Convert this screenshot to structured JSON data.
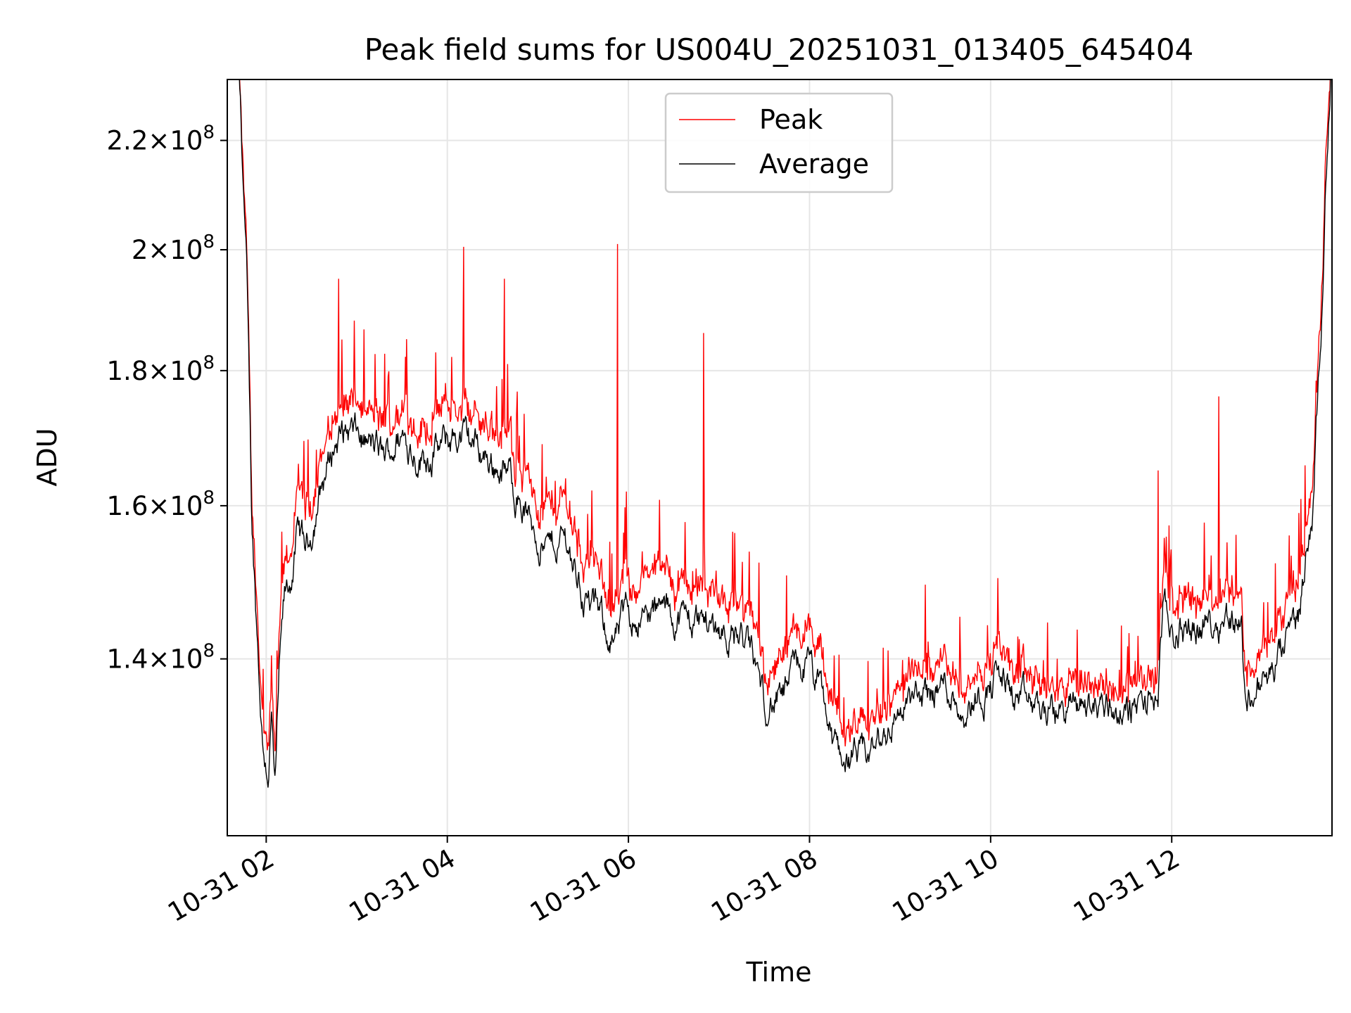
{
  "chart_data": {
    "type": "line",
    "title": "Peak field sums for US004U_20251031_013405_645404",
    "xlabel": "Time",
    "ylabel": "ADU",
    "y_scale": "log",
    "grid": true,
    "legend_position": "upper center",
    "xlim_hours": [
      1.57,
      13.77
    ],
    "ylim": [
      120000000,
      232000000
    ],
    "x_ticks": [
      {
        "hour": 2,
        "label": "10-31 02"
      },
      {
        "hour": 4,
        "label": "10-31 04"
      },
      {
        "hour": 6,
        "label": "10-31 06"
      },
      {
        "hour": 8,
        "label": "10-31 08"
      },
      {
        "hour": 10,
        "label": "10-31 10"
      },
      {
        "hour": 12,
        "label": "10-31 12"
      }
    ],
    "y_ticks": [
      {
        "value": 140000000,
        "mant": "1.4",
        "exp": "8"
      },
      {
        "value": 160000000,
        "mant": "1.6",
        "exp": "8"
      },
      {
        "value": 180000000,
        "mant": "1.8",
        "exp": "8"
      },
      {
        "value": 200000000,
        "mant": "2",
        "exp": "8"
      },
      {
        "value": 220000000,
        "mant": "2.2",
        "exp": "8"
      }
    ],
    "series": [
      {
        "name": "Peak",
        "color": "#ff0000",
        "style": "peak",
        "points_hour_value": [
          [
            1.62,
            235000000
          ],
          [
            1.7,
            232000000
          ],
          [
            1.78,
            200000000
          ],
          [
            1.84,
            160000000
          ],
          [
            1.9,
            145000000
          ],
          [
            1.96,
            132000000
          ],
          [
            2.02,
            130000000
          ],
          [
            2.06,
            136000000
          ],
          [
            2.1,
            126000000
          ],
          [
            2.14,
            140000000
          ],
          [
            2.2,
            150000000
          ],
          [
            2.26,
            152000000
          ],
          [
            2.35,
            160000000
          ],
          [
            2.45,
            158000000
          ],
          [
            2.6,
            165000000
          ],
          [
            2.75,
            172000000
          ],
          [
            2.9,
            174000000
          ],
          [
            3.1,
            172000000
          ],
          [
            3.3,
            170000000
          ],
          [
            3.5,
            173000000
          ],
          [
            3.7,
            170000000
          ],
          [
            3.9,
            172000000
          ],
          [
            4.1,
            173000000
          ],
          [
            4.3,
            172000000
          ],
          [
            4.5,
            170000000
          ],
          [
            4.7,
            168000000
          ],
          [
            4.9,
            162000000
          ],
          [
            5.1,
            158000000
          ],
          [
            5.3,
            160000000
          ],
          [
            5.5,
            152000000
          ],
          [
            5.7,
            149000000
          ],
          [
            5.85,
            145000000
          ],
          [
            6.0,
            149000000
          ],
          [
            6.2,
            149000000
          ],
          [
            6.4,
            150000000
          ],
          [
            6.6,
            148000000
          ],
          [
            6.8,
            148000000
          ],
          [
            7.0,
            147000000
          ],
          [
            7.2,
            146000000
          ],
          [
            7.35,
            144000000
          ],
          [
            7.5,
            138000000
          ],
          [
            7.7,
            138000000
          ],
          [
            7.85,
            142000000
          ],
          [
            8.0,
            142000000
          ],
          [
            8.15,
            138000000
          ],
          [
            8.25,
            133000000
          ],
          [
            8.4,
            131000000
          ],
          [
            8.6,
            130000000
          ],
          [
            8.8,
            133000000
          ],
          [
            9.0,
            136000000
          ],
          [
            9.2,
            137000000
          ],
          [
            9.5,
            139000000
          ],
          [
            9.7,
            136000000
          ],
          [
            9.9,
            138000000
          ],
          [
            10.1,
            140000000
          ],
          [
            10.3,
            137000000
          ],
          [
            10.5,
            136000000
          ],
          [
            10.7,
            135000000
          ],
          [
            10.9,
            136000000
          ],
          [
            11.1,
            136000000
          ],
          [
            11.3,
            136000000
          ],
          [
            11.5,
            135000000
          ],
          [
            11.7,
            136000000
          ],
          [
            11.85,
            137000000
          ],
          [
            11.9,
            149000000
          ],
          [
            12.0,
            146000000
          ],
          [
            12.2,
            147000000
          ],
          [
            12.4,
            147000000
          ],
          [
            12.6,
            148000000
          ],
          [
            12.77,
            148000000
          ],
          [
            12.8,
            138000000
          ],
          [
            12.95,
            139000000
          ],
          [
            13.1,
            141000000
          ],
          [
            13.25,
            144000000
          ],
          [
            13.4,
            148000000
          ],
          [
            13.55,
            162000000
          ],
          [
            13.65,
            190000000
          ],
          [
            13.72,
            225000000
          ],
          [
            13.77,
            240000000
          ]
        ]
      },
      {
        "name": "Average",
        "color": "#000000",
        "style": "avg",
        "points_hour_value": [
          [
            1.62,
            235000000
          ],
          [
            1.7,
            232000000
          ],
          [
            1.78,
            198000000
          ],
          [
            1.84,
            158000000
          ],
          [
            1.9,
            143000000
          ],
          [
            1.96,
            130000000
          ],
          [
            2.02,
            127000000
          ],
          [
            2.06,
            133000000
          ],
          [
            2.1,
            124000000
          ],
          [
            2.14,
            137000000
          ],
          [
            2.2,
            147000000
          ],
          [
            2.26,
            149000000
          ],
          [
            2.35,
            156000000
          ],
          [
            2.45,
            154000000
          ],
          [
            2.6,
            162000000
          ],
          [
            2.75,
            169000000
          ],
          [
            2.9,
            171000000
          ],
          [
            3.1,
            169000000
          ],
          [
            3.3,
            167000000
          ],
          [
            3.5,
            170000000
          ],
          [
            3.7,
            167000000
          ],
          [
            3.9,
            168000000
          ],
          [
            4.1,
            170000000
          ],
          [
            4.3,
            169000000
          ],
          [
            4.5,
            166000000
          ],
          [
            4.7,
            164000000
          ],
          [
            4.9,
            158000000
          ],
          [
            5.1,
            154000000
          ],
          [
            5.3,
            156000000
          ],
          [
            5.5,
            148000000
          ],
          [
            5.7,
            145000000
          ],
          [
            5.85,
            142000000
          ],
          [
            6.0,
            146000000
          ],
          [
            6.2,
            145000000
          ],
          [
            6.4,
            146000000
          ],
          [
            6.6,
            145000000
          ],
          [
            6.8,
            145000000
          ],
          [
            7.0,
            144000000
          ],
          [
            7.2,
            143000000
          ],
          [
            7.35,
            141000000
          ],
          [
            7.5,
            135000000
          ],
          [
            7.7,
            135000000
          ],
          [
            7.85,
            139000000
          ],
          [
            8.0,
            139000000
          ],
          [
            8.15,
            135000000
          ],
          [
            8.25,
            130000000
          ],
          [
            8.4,
            128500000
          ],
          [
            8.6,
            128000000
          ],
          [
            8.8,
            130500000
          ],
          [
            9.0,
            134000000
          ],
          [
            9.2,
            135000000
          ],
          [
            9.5,
            137000000
          ],
          [
            9.7,
            134000000
          ],
          [
            9.9,
            136000000
          ],
          [
            10.1,
            138000000
          ],
          [
            10.3,
            135000000
          ],
          [
            10.5,
            134000000
          ],
          [
            10.7,
            133500000
          ],
          [
            10.9,
            134500000
          ],
          [
            11.1,
            134500000
          ],
          [
            11.3,
            134500000
          ],
          [
            11.5,
            133500000
          ],
          [
            11.7,
            134500000
          ],
          [
            11.85,
            135500000
          ],
          [
            11.9,
            146000000
          ],
          [
            12.0,
            143000000
          ],
          [
            12.2,
            144000000
          ],
          [
            12.4,
            144500000
          ],
          [
            12.6,
            145500000
          ],
          [
            12.77,
            145000000
          ],
          [
            12.8,
            135500000
          ],
          [
            12.95,
            136500000
          ],
          [
            13.1,
            138000000
          ],
          [
            13.25,
            141000000
          ],
          [
            13.4,
            145000000
          ],
          [
            13.55,
            159000000
          ],
          [
            13.65,
            187000000
          ],
          [
            13.72,
            222000000
          ],
          [
            13.77,
            238000000
          ]
        ]
      }
    ],
    "annotations": {
      "peak_spikes": [
        [
          2.8,
          195000000
        ],
        [
          3.55,
          185000000
        ],
        [
          4.18,
          200500000
        ],
        [
          4.63,
          195000000
        ],
        [
          5.88,
          201000000
        ],
        [
          6.83,
          186000000
        ],
        [
          11.85,
          165000000
        ],
        [
          12.52,
          176000000
        ]
      ]
    }
  }
}
